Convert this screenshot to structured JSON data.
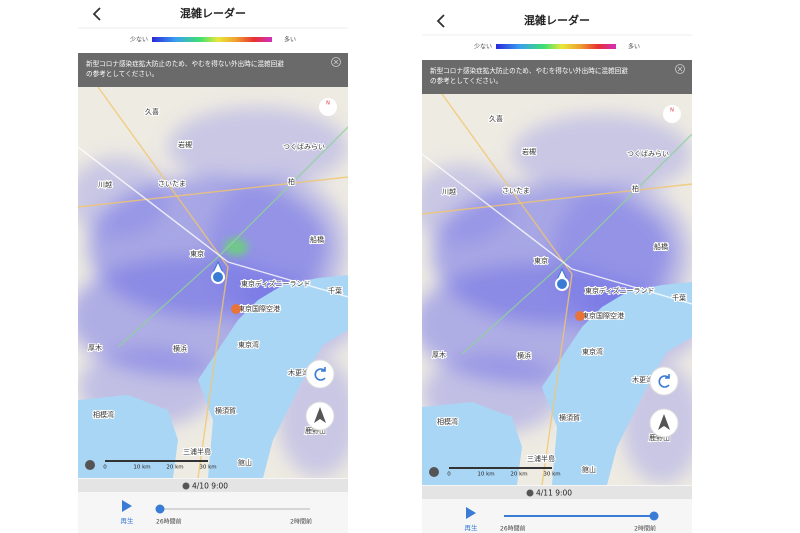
{
  "screens": [
    {
      "header": {
        "title": "混雑レーダー"
      },
      "legend": {
        "low": "少ない",
        "high": "多い"
      },
      "notice": [
        "新型コロナ感染症拡大防止のため、やむを得ない外出時に混雑回避",
        "の参考としてください。"
      ],
      "map": {
        "compass": "N",
        "labels": [
          "久喜",
          "岩槻",
          "川越",
          "さいたま",
          "つくばみらい",
          "柏",
          "東京",
          "船橋",
          "東京ディズニーランド",
          "東京国際空港",
          "千葉",
          "厚木",
          "横浜",
          "東京湾",
          "木更津",
          "相模湾",
          "横須賀",
          "鹿野山",
          "三浦半島",
          "館山"
        ],
        "scale": [
          "0",
          "10 km",
          "20 km",
          "30 km"
        ]
      },
      "date": "4/10 9:00",
      "player": {
        "play": "再生",
        "start": "26時間前",
        "end": "2時間前"
      }
    },
    {
      "header": {
        "title": "混雑レーダー"
      },
      "legend": {
        "low": "少ない",
        "high": "多い"
      },
      "notice": [
        "新型コロナ感染症拡大防止のため、やむを得ない外出時に混雑回避",
        "の参考としてください。"
      ],
      "map": {
        "compass": "N",
        "labels": [
          "久喜",
          "岩槻",
          "川越",
          "さいたま",
          "つくばみらい",
          "柏",
          "東京",
          "船橋",
          "東京ディズニーランド",
          "東京国際空港",
          "千葉",
          "厚木",
          "横浜",
          "東京湾",
          "木更津",
          "相模湾",
          "横須賀",
          "鹿野山",
          "三浦半島",
          "館山"
        ],
        "scale": [
          "0",
          "10 km",
          "20 km",
          "30 km"
        ]
      },
      "date": "4/11 9:00",
      "player": {
        "play": "再生",
        "start": "26時間前",
        "end": "2時間前"
      }
    }
  ]
}
